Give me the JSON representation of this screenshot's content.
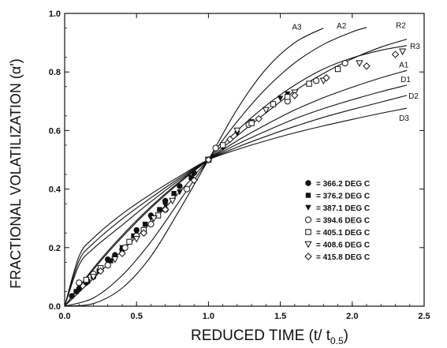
{
  "chart_data": {
    "type": "scatter",
    "xlabel": "REDUCED TIME (t/ t",
    "xlabel_sub": "0.5",
    "xlabel_close": ")",
    "ylabel": "FRACTIONAL VOLATILIZATION (α')",
    "xlim": [
      0.0,
      2.5
    ],
    "ylim": [
      0.0,
      1.0
    ],
    "x_ticks": [
      0.0,
      0.5,
      1.0,
      1.5,
      2.0,
      2.5
    ],
    "x_tick_labels": [
      "0.0",
      "0.5",
      "1.0",
      "1.5",
      "2.0",
      "2.5"
    ],
    "y_ticks": [
      0.0,
      0.2,
      0.4,
      0.6,
      0.8,
      1.0
    ],
    "y_tick_labels": [
      "0.0",
      "0.2",
      "0.4",
      "0.6",
      "0.8",
      "1.0"
    ],
    "grid": false,
    "legend_position": "bottom-right",
    "model_curves": [
      {
        "name": "A3",
        "points": [
          [
            0,
            0
          ],
          [
            0.2,
            0.009
          ],
          [
            0.4,
            0.062
          ],
          [
            0.6,
            0.17
          ],
          [
            0.8,
            0.33
          ],
          [
            1.0,
            0.5
          ],
          [
            1.2,
            0.673
          ],
          [
            1.4,
            0.81
          ],
          [
            1.6,
            0.9
          ],
          [
            1.8,
            0.95
          ]
        ]
      },
      {
        "name": "A2",
        "points": [
          [
            0,
            0
          ],
          [
            0.2,
            0.028
          ],
          [
            0.4,
            0.105
          ],
          [
            0.6,
            0.22
          ],
          [
            0.8,
            0.36
          ],
          [
            1.0,
            0.5
          ],
          [
            1.2,
            0.631
          ],
          [
            1.4,
            0.743
          ],
          [
            1.6,
            0.831
          ],
          [
            1.8,
            0.894
          ],
          [
            2.0,
            0.937
          ],
          [
            2.1,
            0.952
          ]
        ]
      },
      {
        "name": "R2",
        "points": [
          [
            0,
            0
          ],
          [
            0.2,
            0.125
          ],
          [
            0.4,
            0.236
          ],
          [
            0.6,
            0.335
          ],
          [
            0.8,
            0.422
          ],
          [
            1.0,
            0.5
          ],
          [
            1.2,
            0.582
          ],
          [
            1.4,
            0.66
          ],
          [
            1.6,
            0.735
          ],
          [
            1.8,
            0.795
          ],
          [
            2.0,
            0.845
          ],
          [
            2.2,
            0.885
          ],
          [
            2.38,
            0.912
          ]
        ]
      },
      {
        "name": "R3",
        "points": [
          [
            0,
            0
          ],
          [
            0.2,
            0.095
          ],
          [
            0.4,
            0.19
          ],
          [
            0.6,
            0.285
          ],
          [
            0.8,
            0.39
          ],
          [
            1.0,
            0.5
          ],
          [
            1.2,
            0.6
          ],
          [
            1.4,
            0.685
          ],
          [
            1.6,
            0.755
          ],
          [
            1.8,
            0.81
          ],
          [
            2.0,
            0.848
          ],
          [
            2.2,
            0.874
          ],
          [
            2.38,
            0.89
          ]
        ]
      },
      {
        "name": "A1",
        "points": [
          [
            0,
            0
          ],
          [
            0.2,
            0.13
          ],
          [
            0.4,
            0.242
          ],
          [
            0.6,
            0.34
          ],
          [
            0.8,
            0.426
          ],
          [
            1.0,
            0.5
          ],
          [
            1.2,
            0.565
          ],
          [
            1.4,
            0.62
          ],
          [
            1.6,
            0.67
          ],
          [
            1.8,
            0.712
          ],
          [
            2.0,
            0.748
          ],
          [
            2.2,
            0.78
          ],
          [
            2.38,
            0.805
          ]
        ]
      },
      {
        "name": "D1",
        "points": [
          [
            0,
            0
          ],
          [
            0.1,
            0.14
          ],
          [
            0.2,
            0.197
          ],
          [
            0.4,
            0.277
          ],
          [
            0.6,
            0.357
          ],
          [
            0.8,
            0.432
          ],
          [
            1.0,
            0.5
          ],
          [
            1.2,
            0.553
          ],
          [
            1.4,
            0.598
          ],
          [
            1.6,
            0.64
          ],
          [
            1.8,
            0.675
          ],
          [
            2.0,
            0.705
          ],
          [
            2.2,
            0.733
          ],
          [
            2.38,
            0.755
          ]
        ]
      },
      {
        "name": "D2",
        "points": [
          [
            0,
            0
          ],
          [
            0.1,
            0.155
          ],
          [
            0.2,
            0.215
          ],
          [
            0.4,
            0.298
          ],
          [
            0.6,
            0.37
          ],
          [
            0.8,
            0.438
          ],
          [
            1.0,
            0.5
          ],
          [
            1.2,
            0.543
          ],
          [
            1.4,
            0.58
          ],
          [
            1.6,
            0.614
          ],
          [
            1.8,
            0.645
          ],
          [
            2.0,
            0.672
          ],
          [
            2.2,
            0.697
          ],
          [
            2.38,
            0.72
          ]
        ]
      },
      {
        "name": "D3",
        "points": [
          [
            0,
            0
          ],
          [
            0.1,
            0.17
          ],
          [
            0.2,
            0.233
          ],
          [
            0.4,
            0.315
          ],
          [
            0.6,
            0.383
          ],
          [
            0.8,
            0.444
          ],
          [
            1.0,
            0.5
          ],
          [
            1.2,
            0.535
          ],
          [
            1.4,
            0.565
          ],
          [
            1.6,
            0.592
          ],
          [
            1.8,
            0.616
          ],
          [
            2.0,
            0.638
          ],
          [
            2.2,
            0.659
          ],
          [
            2.38,
            0.676
          ]
        ]
      }
    ],
    "series": [
      {
        "name": "= 366.2 DEG C",
        "marker": "filled-circle",
        "points": [
          [
            0.05,
            0.035
          ],
          [
            0.1,
            0.06
          ],
          [
            0.15,
            0.08
          ],
          [
            0.2,
            0.1
          ],
          [
            0.25,
            0.13
          ],
          [
            0.3,
            0.16
          ],
          [
            0.35,
            0.175
          ],
          [
            0.4,
            0.195
          ],
          [
            0.45,
            0.22
          ],
          [
            0.5,
            0.26
          ],
          [
            0.6,
            0.31
          ],
          [
            0.7,
            0.36
          ],
          [
            0.8,
            0.41
          ],
          [
            0.9,
            0.455
          ],
          [
            1.0,
            0.5
          ]
        ]
      },
      {
        "name": "= 376.2 DEG C",
        "marker": "filled-square",
        "points": [
          [
            0.08,
            0.05
          ],
          [
            0.16,
            0.085
          ],
          [
            0.24,
            0.12
          ],
          [
            0.32,
            0.155
          ],
          [
            0.4,
            0.19
          ],
          [
            0.48,
            0.24
          ],
          [
            0.56,
            0.28
          ],
          [
            0.66,
            0.33
          ],
          [
            0.76,
            0.385
          ],
          [
            0.88,
            0.44
          ],
          [
            1.0,
            0.5
          ]
        ]
      },
      {
        "name": "= 387.1 DEG C",
        "marker": "filled-triangle-down",
        "points": [
          [
            0.1,
            0.07
          ],
          [
            0.2,
            0.1
          ],
          [
            0.3,
            0.15
          ],
          [
            0.4,
            0.2
          ],
          [
            0.5,
            0.25
          ],
          [
            0.6,
            0.3
          ],
          [
            0.7,
            0.345
          ],
          [
            0.8,
            0.39
          ],
          [
            1.0,
            0.5
          ],
          [
            1.1,
            0.54
          ],
          [
            1.2,
            0.59
          ],
          [
            1.3,
            0.63
          ],
          [
            1.4,
            0.67
          ],
          [
            1.5,
            0.71
          ],
          [
            1.55,
            0.725
          ]
        ]
      },
      {
        "name": "= 394.6 DEG C",
        "marker": "open-circle",
        "points": [
          [
            0.1,
            0.08
          ],
          [
            0.2,
            0.11
          ],
          [
            0.3,
            0.14
          ],
          [
            0.42,
            0.2
          ],
          [
            0.5,
            0.24
          ],
          [
            0.6,
            0.28
          ],
          [
            0.7,
            0.33
          ],
          [
            0.85,
            0.4
          ],
          [
            1.0,
            0.5
          ],
          [
            1.05,
            0.54
          ],
          [
            1.28,
            0.62
          ],
          [
            1.55,
            0.7
          ],
          [
            1.75,
            0.77
          ],
          [
            1.95,
            0.83
          ]
        ]
      },
      {
        "name": "= 405.1 DEG C",
        "marker": "open-square",
        "points": [
          [
            0.15,
            0.09
          ],
          [
            0.25,
            0.13
          ],
          [
            0.45,
            0.22
          ],
          [
            0.55,
            0.26
          ],
          [
            0.65,
            0.31
          ],
          [
            1.0,
            0.5
          ],
          [
            1.1,
            0.55
          ],
          [
            1.3,
            0.625
          ],
          [
            1.45,
            0.69
          ],
          [
            1.55,
            0.715
          ],
          [
            1.7,
            0.76
          ],
          [
            1.9,
            0.81
          ]
        ]
      },
      {
        "name": "= 408.6 DEG C",
        "marker": "open-triangle-down",
        "points": [
          [
            0.2,
            0.1
          ],
          [
            0.35,
            0.16
          ],
          [
            0.5,
            0.23
          ],
          [
            0.62,
            0.3
          ],
          [
            0.75,
            0.36
          ],
          [
            1.0,
            0.5
          ],
          [
            1.2,
            0.6
          ],
          [
            1.4,
            0.67
          ],
          [
            1.6,
            0.73
          ],
          [
            1.8,
            0.77
          ],
          [
            2.05,
            0.83
          ],
          [
            2.35,
            0.87
          ]
        ]
      },
      {
        "name": "= 415.8 DEG C",
        "marker": "open-diamond",
        "points": [
          [
            0.25,
            0.12
          ],
          [
            0.4,
            0.18
          ],
          [
            0.55,
            0.25
          ],
          [
            0.7,
            0.33
          ],
          [
            0.9,
            0.43
          ],
          [
            1.0,
            0.5
          ],
          [
            1.15,
            0.57
          ],
          [
            1.35,
            0.64
          ],
          [
            1.6,
            0.72
          ],
          [
            1.82,
            0.78
          ],
          [
            2.1,
            0.82
          ],
          [
            2.3,
            0.86
          ]
        ]
      }
    ]
  }
}
